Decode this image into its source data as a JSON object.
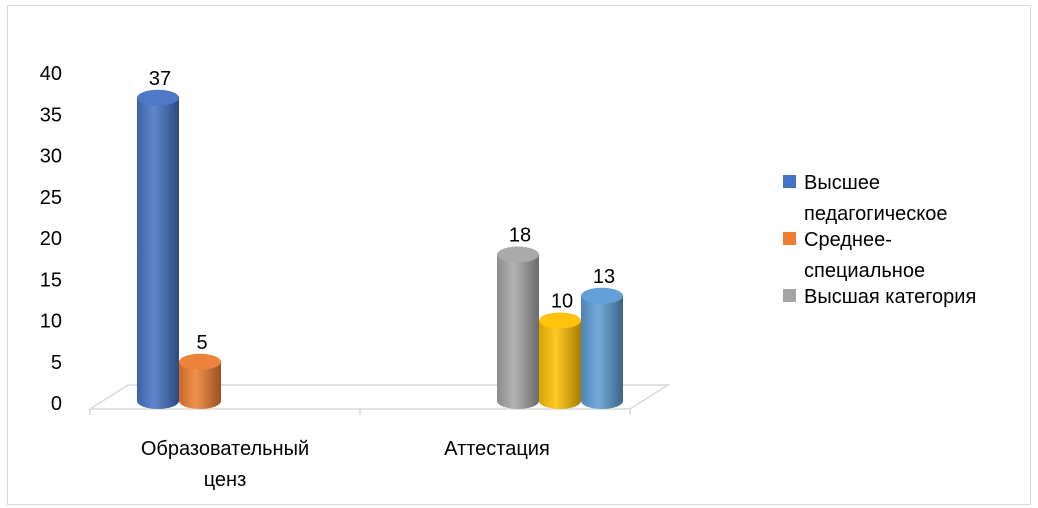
{
  "chart_data": {
    "type": "bar",
    "style": "3d-cylinder",
    "ylim": [
      0,
      40
    ],
    "yticks": [
      0,
      5,
      10,
      15,
      20,
      25,
      30,
      35,
      40
    ],
    "categories": [
      {
        "lines": [
          "Образовательный",
          "ценз"
        ]
      },
      {
        "lines": [
          "Аттестация"
        ]
      }
    ],
    "bars": [
      {
        "category": 0,
        "value": 37,
        "color": "#4472c4"
      },
      {
        "category": 0,
        "value": 5,
        "color": "#ed7d31"
      },
      {
        "category": 1,
        "value": 18,
        "color": "#a5a5a5"
      },
      {
        "category": 1,
        "value": 10,
        "color": "#ffc000"
      },
      {
        "category": 1,
        "value": 13,
        "color": "#5b9bd5"
      }
    ],
    "legend": {
      "position": "right",
      "entries": [
        {
          "lines": [
            "Высшее",
            "педагогическое"
          ],
          "color": "#4472c4"
        },
        {
          "lines": [
            "Среднее-",
            "специальное"
          ],
          "color": "#ed7d31"
        },
        {
          "lines": [
            "Высшая категория"
          ],
          "color": "#a5a5a5"
        }
      ]
    }
  }
}
